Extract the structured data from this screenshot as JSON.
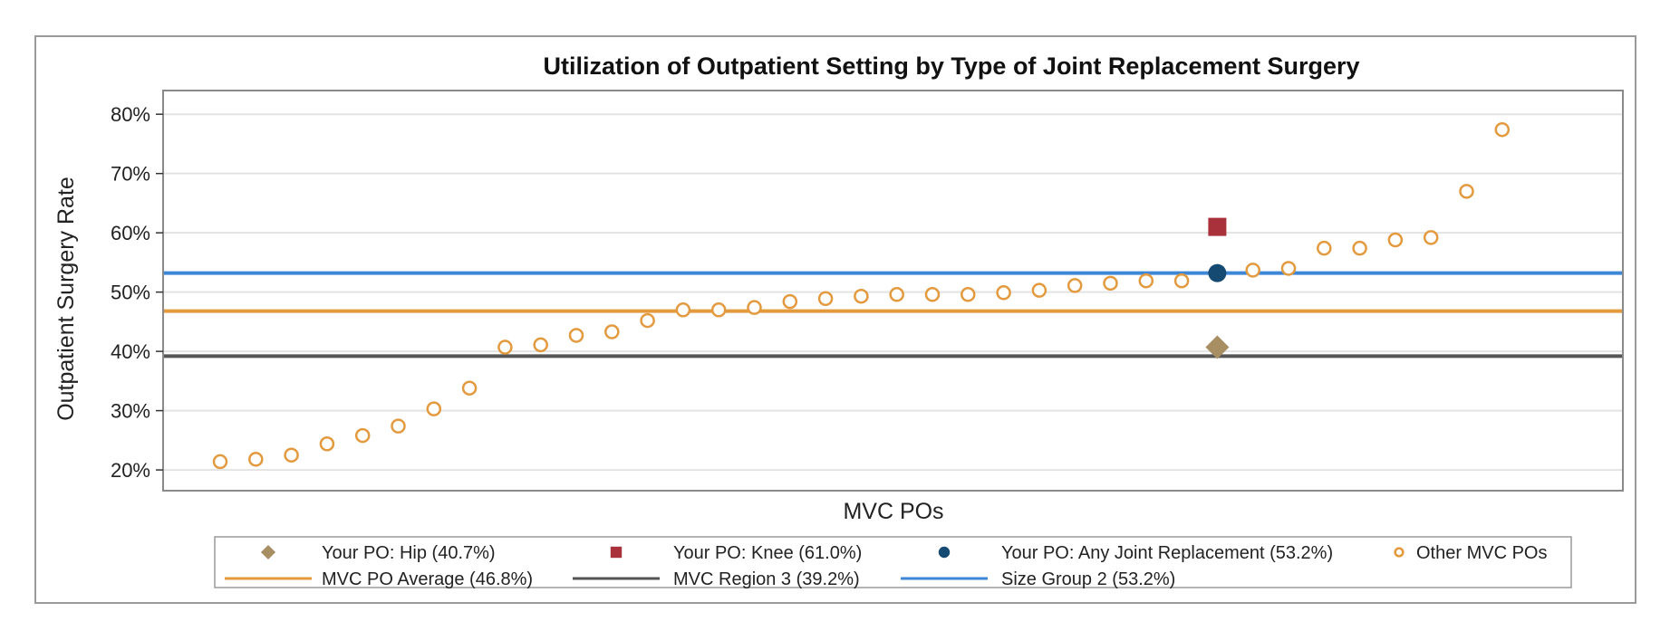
{
  "chart_data": {
    "type": "scatter",
    "title": "Utilization of Outpatient Setting by Type of Joint Replacement Surgery",
    "xlabel": "MVC POs",
    "ylabel": "Outpatient Surgery Rate",
    "ylim": [
      16.5,
      84
    ],
    "yticks": [
      20,
      30,
      40,
      50,
      60,
      70,
      80
    ],
    "ytick_labels": [
      "20%",
      "30%",
      "40%",
      "50%",
      "60%",
      "70%",
      "80%"
    ],
    "grid": true,
    "legend_position": "bottom",
    "n_positions": 37,
    "series": [
      {
        "name": "Other MVC POs",
        "marker": "open-circle",
        "color": "#e39a3f",
        "points": [
          [
            1,
            21.4
          ],
          [
            2,
            21.8
          ],
          [
            3,
            22.5
          ],
          [
            4,
            24.4
          ],
          [
            5,
            25.8
          ],
          [
            6,
            27.4
          ],
          [
            7,
            30.3
          ],
          [
            8,
            33.8
          ],
          [
            9,
            40.7
          ],
          [
            10,
            41.1
          ],
          [
            11,
            42.7
          ],
          [
            12,
            43.3
          ],
          [
            13,
            45.2
          ],
          [
            14,
            47.0
          ],
          [
            15,
            47.0
          ],
          [
            16,
            47.4
          ],
          [
            17,
            48.4
          ],
          [
            18,
            48.9
          ],
          [
            19,
            49.3
          ],
          [
            20,
            49.6
          ],
          [
            21,
            49.6
          ],
          [
            22,
            49.6
          ],
          [
            23,
            49.9
          ],
          [
            24,
            50.3
          ],
          [
            25,
            51.1
          ],
          [
            26,
            51.5
          ],
          [
            27,
            51.9
          ],
          [
            28,
            51.9
          ],
          [
            30,
            53.7
          ],
          [
            31,
            54.0
          ],
          [
            32,
            57.4
          ],
          [
            33,
            57.4
          ],
          [
            34,
            58.8
          ],
          [
            35,
            59.2
          ],
          [
            36,
            67.0
          ],
          [
            37,
            77.4
          ]
        ]
      },
      {
        "name": "Your PO: Hip (40.7%)",
        "marker": "diamond",
        "color": "#a88e63",
        "points": [
          [
            29,
            40.7
          ]
        ]
      },
      {
        "name": "Your PO: Knee (61.0%)",
        "marker": "square",
        "color": "#a8313b",
        "points": [
          [
            29,
            61.0
          ]
        ]
      },
      {
        "name": "Your PO: Any Joint Replacement (53.2%)",
        "marker": "circle",
        "color": "#154a72",
        "points": [
          [
            29,
            53.2
          ]
        ]
      }
    ],
    "reference_lines": [
      {
        "name": "MVC PO Average (46.8%)",
        "value": 46.8,
        "color": "#e39a3f"
      },
      {
        "name": "MVC Region 3 (39.2%)",
        "value": 39.2,
        "color": "#555555"
      },
      {
        "name": "Size Group 2 (53.2%)",
        "value": 53.2,
        "color": "#3e86d6"
      }
    ],
    "legend": {
      "row1": [
        {
          "label": "Your PO: Hip (40.7%)",
          "marker": "diamond",
          "color": "#a88e63"
        },
        {
          "label": "Your PO: Knee (61.0%)",
          "marker": "square",
          "color": "#a8313b"
        },
        {
          "label": "Your PO: Any Joint Replacement (53.2%)",
          "marker": "circle",
          "color": "#154a72"
        },
        {
          "label": "Other MVC POs",
          "marker": "open-circle",
          "color": "#e39a3f"
        }
      ],
      "row2": [
        {
          "label": "MVC PO Average (46.8%)",
          "marker": "line",
          "color": "#e39a3f"
        },
        {
          "label": "MVC Region 3 (39.2%)",
          "marker": "line",
          "color": "#555555"
        },
        {
          "label": "Size Group 2 (53.2%)",
          "marker": "line",
          "color": "#3e86d6"
        }
      ]
    }
  }
}
